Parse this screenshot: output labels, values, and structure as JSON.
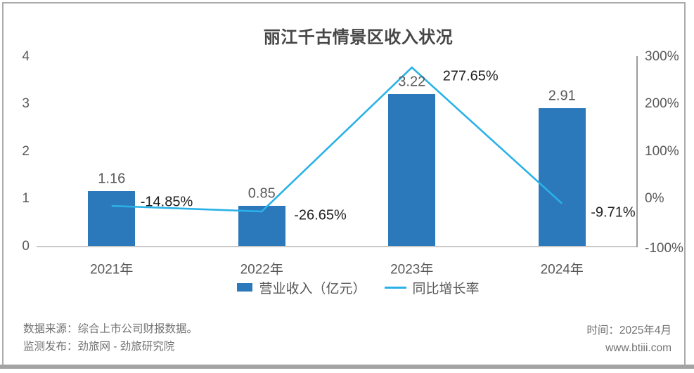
{
  "chart_data": {
    "type": "combo",
    "title": "丽江千古情景区收入状况",
    "categories": [
      "2021年",
      "2022年",
      "2023年",
      "2024年"
    ],
    "series": [
      {
        "name": "营业收入（亿元）",
        "type": "bar",
        "axis": "left",
        "values": [
          1.16,
          0.85,
          3.22,
          2.91
        ],
        "labels": [
          "1.16",
          "0.85",
          "3.22",
          "2.91"
        ],
        "color": "#2b78bb"
      },
      {
        "name": "同比增长率",
        "type": "line",
        "axis": "right",
        "values": [
          -14.85,
          -26.65,
          277.65,
          -9.71
        ],
        "labels": [
          "-14.85%",
          "-26.65%",
          "277.65%",
          "-9.71%"
        ],
        "color": "#2ab2e8"
      }
    ],
    "left_axis": {
      "ticks": [
        "4",
        "3",
        "2",
        "1",
        "0"
      ],
      "min": 0,
      "max": 4
    },
    "right_axis": {
      "ticks": [
        "300%",
        "200%",
        "100%",
        "0%",
        "-100%"
      ],
      "min": -100,
      "max": 300
    },
    "legend_position": "bottom",
    "grid": "off"
  },
  "footer": {
    "source_line": "数据来源：综合上市公司财报数据。",
    "publisher_line": "监测发布：劲旅网 - 劲旅研究院",
    "time_line": "时间：2025年4月",
    "website": "www.btiii.com"
  }
}
